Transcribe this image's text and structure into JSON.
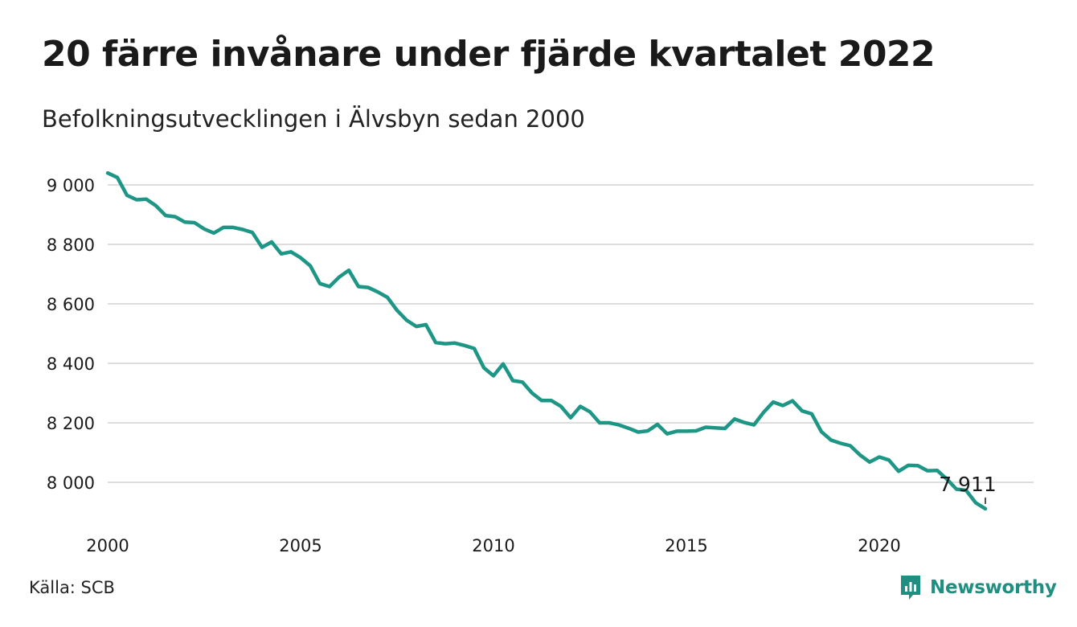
{
  "title": "20 färre invånare under fjärde kvartalet 2022",
  "subtitle": "Befolkningsutvecklingen i Älvsbyn sedan 2000",
  "source": "Källa: SCB",
  "brand": {
    "name": "Newsworthy",
    "icon": "newsworthy-logo-icon"
  },
  "colors": {
    "line": "#1e9685",
    "grid": "#dddddd",
    "brand": "#1e8f80"
  },
  "chart_data": {
    "type": "line",
    "x_start": 2000,
    "x_step": 0.25,
    "y": [
      9040,
      9025,
      8965,
      8950,
      8952,
      8930,
      8897,
      8893,
      8875,
      8873,
      8852,
      8838,
      8857,
      8857,
      8850,
      8840,
      8790,
      8808,
      8768,
      8775,
      8755,
      8728,
      8668,
      8658,
      8690,
      8713,
      8658,
      8655,
      8640,
      8622,
      8578,
      8545,
      8524,
      8530,
      8470,
      8466,
      8468,
      8460,
      8450,
      8385,
      8358,
      8398,
      8342,
      8337,
      8300,
      8275,
      8275,
      8255,
      8217,
      8255,
      8237,
      8200,
      8200,
      8193,
      8182,
      8169,
      8173,
      8195,
      8163,
      8172,
      8172,
      8173,
      8185,
      8183,
      8181,
      8213,
      8201,
      8193,
      8235,
      8270,
      8258,
      8274,
      8240,
      8230,
      8170,
      8142,
      8131,
      8123,
      8092,
      8068,
      8085,
      8075,
      8037,
      8057,
      8056,
      8039,
      8040,
      8011,
      7977,
      7973,
      7931,
      7911
    ],
    "last_label": "7 911",
    "x_ticks": [
      "2000",
      "2005",
      "2010",
      "2015",
      "2020"
    ],
    "x_tick_values": [
      2000,
      2005,
      2010,
      2015,
      2020
    ],
    "y_ticks": [
      "8 000",
      "8 200",
      "8 400",
      "8 600",
      "8 800",
      "9 000"
    ],
    "y_tick_values": [
      8000,
      8200,
      8400,
      8600,
      8800,
      9000
    ],
    "xlim": [
      2000,
      2023.25
    ],
    "ylim": [
      7880,
      9070
    ],
    "grid": true,
    "legend": "none"
  }
}
